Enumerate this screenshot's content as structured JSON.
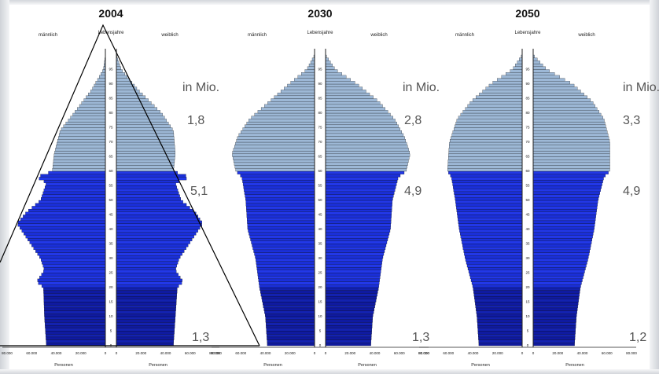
{
  "chart_data": [
    {
      "type": "bar",
      "title": "2004",
      "left_label": "männlich",
      "center_label": "Lebensjahre",
      "right_label": "weiblich",
      "unit_label": "in Mio.",
      "group_values": [
        "1,8",
        "5,1",
        "1,3"
      ],
      "xlabel_left": "Personen",
      "xlabel_right": "Personen",
      "x_ticks": [
        "80.000",
        "60.000",
        "40.000",
        "20.000",
        "0"
      ],
      "age_ticks": [
        "0",
        "5",
        "10",
        "15",
        "20",
        "25",
        "30",
        "35",
        "40",
        "45",
        "50",
        "55",
        "60",
        "65",
        "70",
        "75",
        "80",
        "85",
        "90",
        "95"
      ],
      "male_profile": [
        [
          0,
          60
        ],
        [
          10,
          62
        ],
        [
          20,
          63
        ],
        [
          22,
          70
        ],
        [
          26,
          62
        ],
        [
          30,
          66
        ],
        [
          34,
          74
        ],
        [
          38,
          82
        ],
        [
          42,
          90
        ],
        [
          46,
          80
        ],
        [
          50,
          66
        ],
        [
          56,
          60
        ],
        [
          58,
          70
        ],
        [
          60,
          54
        ],
        [
          66,
          52
        ],
        [
          74,
          46
        ],
        [
          80,
          32
        ],
        [
          88,
          14
        ],
        [
          95,
          2
        ],
        [
          100,
          0
        ]
      ],
      "female_profile": [
        [
          0,
          58
        ],
        [
          10,
          60
        ],
        [
          20,
          62
        ],
        [
          22,
          68
        ],
        [
          26,
          60
        ],
        [
          30,
          64
        ],
        [
          34,
          72
        ],
        [
          38,
          80
        ],
        [
          42,
          88
        ],
        [
          46,
          80
        ],
        [
          50,
          66
        ],
        [
          56,
          60
        ],
        [
          58,
          75
        ],
        [
          60,
          58
        ],
        [
          66,
          60
        ],
        [
          74,
          58
        ],
        [
          80,
          46
        ],
        [
          88,
          22
        ],
        [
          95,
          5
        ],
        [
          100,
          0
        ]
      ]
    },
    {
      "type": "bar",
      "title": "2030",
      "left_label": "männlich",
      "center_label": "Lebensjahre",
      "right_label": "weiblich",
      "unit_label": "in Mio.",
      "group_values": [
        "2,8",
        "4,9",
        "1,3"
      ],
      "xlabel_left": "Personen",
      "xlabel_right": "Personen",
      "x_ticks": [
        "80.000",
        "60.000",
        "40.000",
        "20.000",
        "0"
      ],
      "age_ticks": [
        "0",
        "5",
        "10",
        "15",
        "20",
        "25",
        "30",
        "35",
        "40",
        "45",
        "50",
        "55",
        "60",
        "65",
        "70",
        "75",
        "80",
        "85",
        "90",
        "95"
      ],
      "male_profile": [
        [
          0,
          48
        ],
        [
          10,
          50
        ],
        [
          20,
          56
        ],
        [
          30,
          60
        ],
        [
          40,
          68
        ],
        [
          50,
          70
        ],
        [
          58,
          74
        ],
        [
          60,
          80
        ],
        [
          66,
          84
        ],
        [
          72,
          78
        ],
        [
          78,
          66
        ],
        [
          84,
          46
        ],
        [
          90,
          26
        ],
        [
          95,
          8
        ],
        [
          100,
          0
        ]
      ],
      "female_profile": [
        [
          0,
          46
        ],
        [
          10,
          48
        ],
        [
          20,
          54
        ],
        [
          30,
          58
        ],
        [
          40,
          66
        ],
        [
          50,
          68
        ],
        [
          58,
          74
        ],
        [
          60,
          82
        ],
        [
          66,
          86
        ],
        [
          72,
          80
        ],
        [
          78,
          70
        ],
        [
          84,
          54
        ],
        [
          90,
          32
        ],
        [
          95,
          10
        ],
        [
          100,
          0
        ]
      ]
    },
    {
      "type": "bar",
      "title": "2050",
      "left_label": "männlich",
      "center_label": "Lebensjahre",
      "right_label": "weiblich",
      "unit_label": "in Mio.",
      "group_values": [
        "3,3",
        "4,9",
        "1,2"
      ],
      "xlabel_left": "Personen",
      "xlabel_right": "Personen",
      "x_ticks": [
        "80.000",
        "60.000",
        "40.000",
        "20.000",
        "0"
      ],
      "age_ticks": [
        "0",
        "5",
        "10",
        "15",
        "20",
        "25",
        "30",
        "35",
        "40",
        "45",
        "50",
        "55",
        "60",
        "65",
        "70",
        "75",
        "80",
        "85",
        "90",
        "95"
      ],
      "male_profile": [
        [
          0,
          44
        ],
        [
          10,
          46
        ],
        [
          20,
          50
        ],
        [
          30,
          58
        ],
        [
          40,
          64
        ],
        [
          50,
          68
        ],
        [
          58,
          72
        ],
        [
          60,
          76
        ],
        [
          70,
          74
        ],
        [
          78,
          66
        ],
        [
          84,
          52
        ],
        [
          90,
          32
        ],
        [
          95,
          10
        ],
        [
          100,
          0
        ]
      ],
      "female_profile": [
        [
          0,
          42
        ],
        [
          10,
          44
        ],
        [
          20,
          48
        ],
        [
          30,
          56
        ],
        [
          40,
          62
        ],
        [
          50,
          66
        ],
        [
          58,
          72
        ],
        [
          60,
          78
        ],
        [
          70,
          78
        ],
        [
          78,
          72
        ],
        [
          84,
          60
        ],
        [
          90,
          40
        ],
        [
          95,
          14
        ],
        [
          100,
          0
        ]
      ]
    }
  ]
}
